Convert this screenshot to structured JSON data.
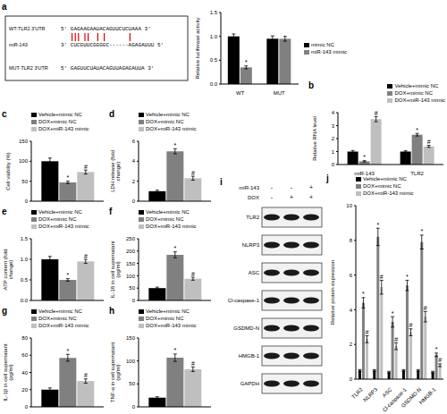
{
  "chart_data": [
    {
      "type": "bar",
      "categories": [
        "WT",
        "MUT"
      ],
      "y_label": "Relative luciferase activity",
      "ylim": [
        0,
        1.5
      ],
      "yticks": [
        {
          "value": 0,
          "label": "0.0"
        },
        0.5,
        {
          "value": 1,
          "label": "1.0"
        },
        1.5
      ],
      "legend": "right",
      "series": [
        {
          "name": "mimic NC",
          "color": "#000000",
          "values": [
            1.0,
            0.95
          ],
          "errors": [
            0.05,
            0.06
          ],
          "annotations": [
            null,
            null
          ]
        },
        {
          "name": "miR-143 mimic",
          "color": "#808080",
          "values": [
            0.35,
            0.95
          ],
          "errors": [
            0.03,
            0.05
          ],
          "annotations": [
            "*",
            null
          ]
        }
      ]
    },
    {
      "type": "bar",
      "panel": "b",
      "categories": [
        "miR-143",
        "TLR2"
      ],
      "y_label": "Relative RNA level",
      "ylim": [
        0,
        4
      ],
      "yticks": [
        0,
        1,
        2,
        3,
        4
      ],
      "legend": "upper right",
      "series": [
        {
          "name": "Vehicle+mimic NC",
          "color": "#000000",
          "values": [
            1.0,
            1.0
          ],
          "errors": [
            0.08,
            0.06
          ],
          "annotations": [
            null,
            null
          ]
        },
        {
          "name": "DOX+mimic NC",
          "color": "#808080",
          "values": [
            0.25,
            2.3
          ],
          "errors": [
            0.05,
            0.1
          ],
          "annotations": [
            "*",
            "*"
          ]
        },
        {
          "name": "DOX+miR-143 mimic",
          "color": "#bfbfbf",
          "values": [
            3.5,
            1.4
          ],
          "errors": [
            0.2,
            0.08
          ],
          "annotations": [
            "#",
            "#"
          ]
        }
      ]
    },
    {
      "type": "bar",
      "panel": "c",
      "categories": [
        null
      ],
      "tick_labels": "y",
      "y_label": "Cell viability (%)",
      "ylim": [
        0,
        150
      ],
      "yticks": [
        0,
        50,
        100,
        150
      ],
      "legend": "top",
      "series": [
        {
          "name": "Vehicle+mimic NC",
          "color": "#000000",
          "values": [
            100
          ],
          "errors": [
            8
          ],
          "annotations": [
            null
          ]
        },
        {
          "name": "DOX+mimic NC",
          "color": "#808080",
          "values": [
            47
          ],
          "errors": [
            3
          ],
          "annotations": [
            "*"
          ]
        },
        {
          "name": "DOX+miR-143 mimic",
          "color": "#bfbfbf",
          "values": [
            73
          ],
          "errors": [
            5
          ],
          "annotations": [
            "#"
          ]
        }
      ]
    },
    {
      "type": "bar",
      "panel": "d",
      "categories": [
        null
      ],
      "tick_labels": "y",
      "y_label": "LDH release (fold change)",
      "ylim": [
        0,
        6
      ],
      "yticks": [
        0,
        2,
        4,
        6
      ],
      "legend": "top",
      "series": [
        {
          "name": "Vehicle+mimic NC",
          "color": "#000000",
          "values": [
            1.0
          ],
          "errors": [
            0.1
          ],
          "annotations": [
            null
          ]
        },
        {
          "name": "DOX+mimic NC",
          "color": "#808080",
          "values": [
            5.0
          ],
          "errors": [
            0.25
          ],
          "annotations": [
            "*"
          ]
        },
        {
          "name": "DOX+miR-143 mimic",
          "color": "#bfbfbf",
          "values": [
            2.3
          ],
          "errors": [
            0.2
          ],
          "annotations": [
            "#"
          ]
        }
      ]
    },
    {
      "type": "bar",
      "panel": "e",
      "categories": [
        null
      ],
      "tick_labels": "y",
      "y_label": "ATP content (fold change)",
      "ylim": [
        0,
        1.5
      ],
      "yticks": [
        {
          "value": 0,
          "label": "0.0"
        },
        0.5,
        {
          "value": 1,
          "label": "1.0"
        },
        1.5
      ],
      "legend": "top",
      "series": [
        {
          "name": "Vehicle+mimic NC",
          "color": "#000000",
          "values": [
            1.0
          ],
          "errors": [
            0.07
          ],
          "annotations": [
            null
          ]
        },
        {
          "name": "DOX+mimic NC",
          "color": "#808080",
          "values": [
            0.5
          ],
          "errors": [
            0.03
          ],
          "annotations": [
            "*"
          ]
        },
        {
          "name": "DOX+miR-143 mimic",
          "color": "#bfbfbf",
          "values": [
            0.95
          ],
          "errors": [
            0.05
          ],
          "annotations": [
            "#"
          ]
        }
      ]
    },
    {
      "type": "bar",
      "panel": "f",
      "categories": [
        null
      ],
      "tick_labels": "y",
      "y_label": "IL-18 in cell supernatant (pg/ml)",
      "ylim": [
        0,
        250
      ],
      "yticks": [
        0,
        50,
        100,
        150,
        200,
        250
      ],
      "legend": "top",
      "series": [
        {
          "name": "Vehicle+mimic NC",
          "color": "#000000",
          "values": [
            50
          ],
          "errors": [
            4
          ],
          "annotations": [
            null
          ]
        },
        {
          "name": "DOX+mimic NC",
          "color": "#808080",
          "values": [
            185
          ],
          "errors": [
            12
          ],
          "annotations": [
            "*"
          ]
        },
        {
          "name": "DOX+miR-143 mimic",
          "color": "#bfbfbf",
          "values": [
            88
          ],
          "errors": [
            6
          ],
          "annotations": [
            "#"
          ]
        }
      ]
    },
    {
      "type": "bar",
      "panel": "g",
      "categories": [
        null
      ],
      "tick_labels": "y",
      "y_label": "IL-1β in cell supernatant (pg/ml)",
      "ylim": [
        0,
        80
      ],
      "yticks": [
        0,
        20,
        40,
        60,
        80
      ],
      "legend": "top",
      "series": [
        {
          "name": "Vehicle+mimic NC",
          "color": "#000000",
          "values": [
            20
          ],
          "errors": [
            2
          ],
          "annotations": [
            null
          ]
        },
        {
          "name": "DOX+mimic NC",
          "color": "#808080",
          "values": [
            57
          ],
          "errors": [
            4
          ],
          "annotations": [
            "*"
          ]
        },
        {
          "name": "DOX+miR-143 mimic",
          "color": "#bfbfbf",
          "values": [
            30
          ],
          "errors": [
            2.5
          ],
          "annotations": [
            "#"
          ]
        }
      ]
    },
    {
      "type": "bar",
      "panel": "h",
      "categories": [
        null
      ],
      "tick_labels": "y",
      "y_label": "TNF-α in cell supernatant (pg/ml)",
      "ylim": [
        0,
        150
      ],
      "yticks": [
        0,
        50,
        100,
        150
      ],
      "legend": "top",
      "series": [
        {
          "name": "Vehicle+mimic NC",
          "color": "#000000",
          "values": [
            20
          ],
          "errors": [
            2
          ],
          "annotations": [
            null
          ]
        },
        {
          "name": "DOX+mimic NC",
          "color": "#808080",
          "values": [
            107
          ],
          "errors": [
            8
          ],
          "annotations": [
            "*"
          ]
        },
        {
          "name": "DOX+miR-143 mimic",
          "color": "#bfbfbf",
          "values": [
            82
          ],
          "errors": [
            5
          ],
          "annotations": [
            "#"
          ]
        }
      ]
    },
    {
      "type": "bar",
      "panel": "j",
      "categories": [
        "TLR2",
        "NLRP3",
        "ASC",
        "Cl-caspase-1",
        "GSDMD-N",
        "HMGB-1"
      ],
      "y_label": "Relative protein expression",
      "ylim": [
        0,
        10
      ],
      "yticks": [
        0,
        2,
        4,
        6,
        8,
        10
      ],
      "legend": "top",
      "series": [
        {
          "name": "Vehicle+mimic NC",
          "color": "#000000",
          "values": [
            0.5,
            0.5,
            0.4,
            0.5,
            0.5,
            0.4
          ],
          "errors": [
            0.05,
            0.05,
            0.05,
            0.05,
            0.05,
            0.05
          ],
          "annotations": [
            null,
            null,
            null,
            null,
            null,
            null
          ]
        },
        {
          "name": "DOX+mimic NC",
          "color": "#808080",
          "values": [
            4.4,
            8.2,
            3.3,
            5.4,
            7.9,
            1.4
          ],
          "errors": [
            0.3,
            0.5,
            0.3,
            0.3,
            0.4,
            0.1
          ],
          "annotations": [
            "*",
            "*",
            "*",
            "*",
            "*",
            "*"
          ]
        },
        {
          "name": "DOX+miR-143 mimic",
          "color": "#bfbfbf",
          "values": [
            2.3,
            5.3,
            1.9,
            2.7,
            3.6,
            0.8
          ],
          "errors": [
            0.2,
            0.4,
            0.2,
            0.2,
            0.3,
            0.08
          ],
          "annotations": [
            "#",
            "#",
            "#",
            "#",
            "#",
            "#"
          ]
        }
      ]
    }
  ],
  "sequence_alignment": {
    "panel": "a",
    "rows": [
      {
        "name": "WT-TLR2 3'UTR",
        "sequence": "5' GAGAAGAAUACAGUUCUCUAAA 3'"
      },
      {
        "name": "miR-143",
        "sequence": "3' CUCGUUCGGGGC------AGAGAUUU 5'"
      },
      {
        "name": "MUT-TLR2 3'UTR",
        "sequence": "5' GAGUUCUAUACAGUUAGAGAUUA 3'"
      }
    ]
  },
  "western_blot": {
    "panel": "i",
    "conditions": [
      {
        "label": "miR-143",
        "signs": [
          "-",
          "-",
          "+"
        ]
      },
      {
        "label": "DOX",
        "signs": [
          "-",
          "+",
          "+"
        ]
      }
    ],
    "rows": [
      "TLR2",
      "NLRP3",
      "ASC",
      "Cl-caspase-1",
      "GSDMD-N",
      "HMGB-1",
      "GAPDH"
    ]
  }
}
